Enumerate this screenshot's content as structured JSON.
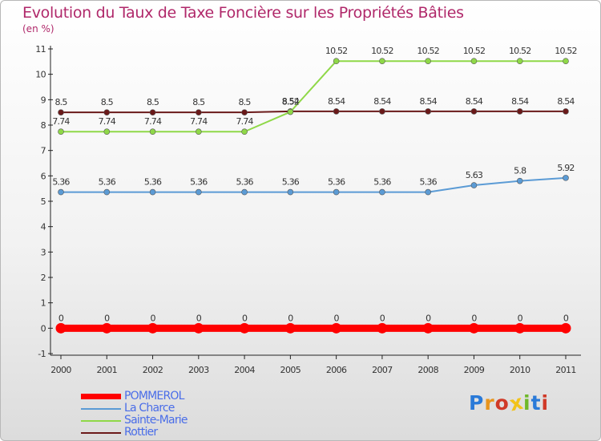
{
  "title": "Evolution du Taux de Taxe Foncière sur les Propriétés Bâties",
  "subtitle": "(en %)",
  "brand": {
    "name": "Proxiti",
    "colors": [
      "#2a7ad8",
      "#e8951e",
      "#d03a28",
      "#f2c31a",
      "#6fb82a",
      "#2a7ad8",
      "#d03a28"
    ]
  },
  "chart_data": {
    "type": "line",
    "title": "Evolution du Taux de Taxe Foncière sur les Propriétés Bâties",
    "ylabel": "(en %)",
    "xlabel": "",
    "x": [
      "2000",
      "2001",
      "2002",
      "2003",
      "2004",
      "2005",
      "2006",
      "2007",
      "2008",
      "2009",
      "2010",
      "2011"
    ],
    "yticks": [
      "-1",
      "0",
      "1",
      "2",
      "3",
      "4",
      "5",
      "6",
      "7",
      "8",
      "9",
      "10",
      "11"
    ],
    "ylim": [
      -1,
      11
    ],
    "grid": false,
    "legend": "bottom-left",
    "series": [
      {
        "name": "POMMEROL",
        "color": "#ff0000",
        "values": [
          0,
          0,
          0,
          0,
          0,
          0,
          0,
          0,
          0,
          0,
          0,
          0
        ],
        "labels": [
          "0",
          "0",
          "0",
          "0",
          "0",
          "0",
          "0",
          "0",
          "0",
          "0",
          "0",
          "0"
        ]
      },
      {
        "name": "La Charce",
        "color": "#5b9bd5",
        "values": [
          5.36,
          5.36,
          5.36,
          5.36,
          5.36,
          5.36,
          5.36,
          5.36,
          5.36,
          5.63,
          5.8,
          5.92
        ],
        "labels": [
          "5.36",
          "5.36",
          "5.36",
          "5.36",
          "5.36",
          "5.36",
          "5.36",
          "5.36",
          "5.36",
          "5.63",
          "5.8",
          "5.92"
        ]
      },
      {
        "name": "Sainte-Marie",
        "color": "#8fd848",
        "values": [
          7.74,
          7.74,
          7.74,
          7.74,
          7.74,
          8.52,
          10.52,
          10.52,
          10.52,
          10.52,
          10.52,
          10.52
        ],
        "labels": [
          "7.74",
          "7.74",
          "7.74",
          "7.74",
          "7.74",
          "8.52",
          "10.52",
          "10.52",
          "10.52",
          "10.52",
          "10.52",
          "10.52"
        ]
      },
      {
        "name": "Rottier",
        "color": "#6b1a1a",
        "values": [
          8.5,
          8.5,
          8.5,
          8.5,
          8.5,
          8.54,
          8.54,
          8.54,
          8.54,
          8.54,
          8.54,
          8.54
        ],
        "labels": [
          "8.5",
          "8.5",
          "8.5",
          "8.5",
          "8.5",
          "8.54",
          "8.54",
          "8.54",
          "8.54",
          "8.54",
          "8.54",
          "8.54"
        ]
      }
    ]
  }
}
